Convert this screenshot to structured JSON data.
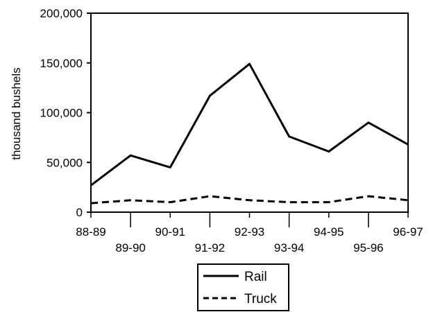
{
  "chart_data": {
    "type": "line",
    "title": "",
    "xlabel": "",
    "ylabel": "thousand bushels",
    "categories": [
      "88-89",
      "89-90",
      "90-91",
      "91-92",
      "92-93",
      "93-94",
      "94-95",
      "95-96",
      "96-97"
    ],
    "series": [
      {
        "name": "Rail",
        "values": [
          27000,
          57000,
          45000,
          117000,
          149000,
          76000,
          61000,
          90000,
          68000
        ],
        "style": "solid"
      },
      {
        "name": "Truck",
        "values": [
          9000,
          12000,
          10000,
          16000,
          12000,
          10000,
          10000,
          16000,
          12000
        ],
        "style": "dashed"
      }
    ],
    "ylim": [
      0,
      200000
    ],
    "yticks": [
      "0",
      "50,000",
      "100,000",
      "150,000",
      "200,000"
    ],
    "ytick_values": [
      0,
      50000,
      100000,
      150000,
      200000
    ],
    "grid": false,
    "legend": "bottom-center"
  }
}
